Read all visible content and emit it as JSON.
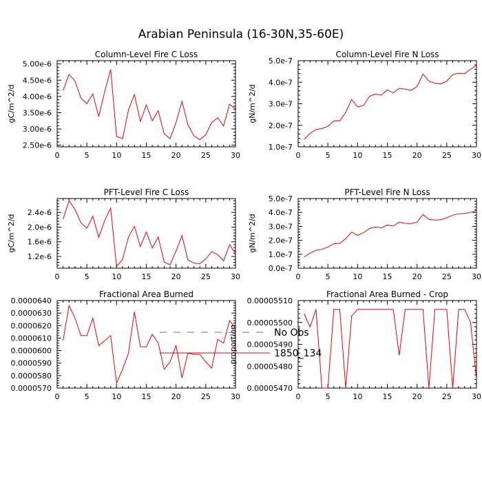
{
  "figure": {
    "title": "Arabian Peninsula (16-30N,35-60E)"
  },
  "legend": {
    "items": [
      {
        "label": "No Obs",
        "color": "#6666cc",
        "dashed": true
      },
      {
        "label": "1850_134",
        "color": "#ee0000",
        "dashed": false
      }
    ]
  },
  "chart_data": [
    {
      "type": "line",
      "title": "Column-Level Fire C Loss",
      "ylabel": "gC/m^2/d",
      "xlim": [
        0,
        30
      ],
      "ylim": [
        2.45e-06,
        5.1e-06
      ],
      "xticks": [
        0,
        5,
        10,
        15,
        20,
        25,
        30
      ],
      "xtick_labels": [
        "0",
        "5",
        "10",
        "15",
        "20",
        "25",
        "30"
      ],
      "yticks": [
        2.5e-06,
        3e-06,
        3.5e-06,
        4e-06,
        4.5e-06,
        5e-06
      ],
      "ytick_labels": [
        "2.50e-6",
        "3.00e-6",
        "3.50e-6",
        "4.00e-6",
        "4.50e-6",
        "5.00e-6"
      ],
      "series": [
        {
          "name": "1850_134",
          "x": [
            1,
            2,
            3,
            4,
            5,
            6,
            7,
            8,
            9,
            10,
            11,
            12,
            13,
            14,
            15,
            16,
            17,
            18,
            19,
            20,
            21,
            22,
            23,
            24,
            25,
            26,
            27,
            28,
            29,
            30
          ],
          "y": [
            4.18e-06,
            4.68e-06,
            4.47e-06,
            3.95e-06,
            3.78e-06,
            4.08e-06,
            3.38e-06,
            4.15e-06,
            4.83e-06,
            2.77e-06,
            2.7e-06,
            3.58e-06,
            4.06e-06,
            3.23e-06,
            3.74e-06,
            3.25e-06,
            3.56e-06,
            2.85e-06,
            2.7e-06,
            3.2e-06,
            3.85e-06,
            3.13e-06,
            2.79e-06,
            2.67e-06,
            2.82e-06,
            3.2e-06,
            3.34e-06,
            3.09e-06,
            3.76e-06,
            3.62e-06
          ]
        }
      ]
    },
    {
      "type": "line",
      "title": "Column-Level Fire N Loss",
      "ylabel": "gN/m^2/d",
      "xlim": [
        0,
        30
      ],
      "ylim": [
        1e-07,
        5e-07
      ],
      "xticks": [
        0,
        5,
        10,
        15,
        20,
        25,
        30
      ],
      "xtick_labels": [
        "0",
        "5",
        "10",
        "15",
        "20",
        "25",
        "30"
      ],
      "yticks": [
        1e-07,
        2e-07,
        3e-07,
        4e-07,
        5e-07
      ],
      "ytick_labels": [
        "1.0e-7",
        "2.0e-7",
        "3.0e-7",
        "4.0e-7",
        "5.0e-7"
      ],
      "series": [
        {
          "name": "1850_134",
          "x": [
            1,
            2,
            3,
            4,
            5,
            6,
            7,
            8,
            9,
            10,
            11,
            12,
            13,
            14,
            15,
            16,
            17,
            18,
            19,
            20,
            21,
            22,
            23,
            24,
            25,
            26,
            27,
            28,
            29,
            30
          ],
          "y": [
            1.35e-07,
            1.62e-07,
            1.8e-07,
            1.85e-07,
            1.95e-07,
            2.2e-07,
            2.2e-07,
            2.6e-07,
            3.2e-07,
            2.85e-07,
            2.92e-07,
            3.35e-07,
            3.45e-07,
            3.4e-07,
            3.65e-07,
            3.5e-07,
            3.72e-07,
            3.68e-07,
            3.62e-07,
            3.8e-07,
            4.38e-07,
            4.05e-07,
            3.95e-07,
            3.92e-07,
            4.05e-07,
            4.35e-07,
            4.42e-07,
            4.4e-07,
            4.6e-07,
            4.78e-07
          ]
        }
      ]
    },
    {
      "type": "line",
      "title": "PFT-Level Fire C Loss",
      "ylabel": "gC/m^2/d",
      "xlim": [
        0,
        30
      ],
      "ylim": [
        8.8e-07,
        2.78e-06
      ],
      "xticks": [
        0,
        5,
        10,
        15,
        20,
        25,
        30
      ],
      "xtick_labels": [
        "0",
        "5",
        "10",
        "15",
        "20",
        "25",
        "30"
      ],
      "yticks": [
        1.2e-06,
        1.6e-06,
        2e-06,
        2.4e-06
      ],
      "ytick_labels": [
        "1.2e-6",
        "1.6e-6",
        "2.0e-6",
        "2.4e-6"
      ],
      "series": [
        {
          "name": "1850_134",
          "x": [
            1,
            2,
            3,
            4,
            5,
            6,
            7,
            8,
            9,
            10,
            11,
            12,
            13,
            14,
            15,
            16,
            17,
            18,
            19,
            20,
            21,
            22,
            23,
            24,
            25,
            26,
            27,
            28,
            29,
            30
          ],
          "y": [
            2.22e-06,
            2.72e-06,
            2.48e-06,
            2.12e-06,
            1.97e-06,
            2.3e-06,
            1.72e-06,
            2.18e-06,
            2.52e-06,
            9.2e-07,
            1.12e-06,
            1.73e-06,
            2.02e-06,
            1.47e-06,
            1.87e-06,
            1.43e-06,
            1.73e-06,
            1.05e-06,
            9.7e-07,
            1.35e-06,
            1.77e-06,
            1.1e-06,
            1.02e-06,
            1e-06,
            1.13e-06,
            1.33e-06,
            1.25e-06,
            1.08e-06,
            1.52e-06,
            1.28e-06
          ]
        }
      ]
    },
    {
      "type": "line",
      "title": "PFT-Level Fire N Loss",
      "ylabel": "gN/m^2/d",
      "xlim": [
        0,
        30
      ],
      "ylim": [
        0.0,
        5e-07
      ],
      "xticks": [
        0,
        5,
        10,
        15,
        20,
        25,
        30
      ],
      "xtick_labels": [
        "0",
        "5",
        "10",
        "15",
        "20",
        "25",
        "30"
      ],
      "yticks": [
        0.0,
        1e-07,
        2e-07,
        3e-07,
        4e-07,
        5e-07
      ],
      "ytick_labels": [
        "0.0e-7",
        "1.0e-7",
        "2.0e-7",
        "3.0e-7",
        "4.0e-7",
        "5.0e-7"
      ],
      "series": [
        {
          "name": "1850_134",
          "x": [
            1,
            2,
            3,
            4,
            5,
            6,
            7,
            8,
            9,
            10,
            11,
            12,
            13,
            14,
            15,
            16,
            17,
            18,
            19,
            20,
            21,
            22,
            23,
            24,
            25,
            26,
            27,
            28,
            29,
            30
          ],
          "y": [
            8e-08,
            1.08e-07,
            1.28e-07,
            1.35e-07,
            1.52e-07,
            1.75e-07,
            1.78e-07,
            2.12e-07,
            2.6e-07,
            2.35e-07,
            2.55e-07,
            2.85e-07,
            2.95e-07,
            2.9e-07,
            3.1e-07,
            3.02e-07,
            3.3e-07,
            3.22e-07,
            3.2e-07,
            3.3e-07,
            3.85e-07,
            3.5e-07,
            3.45e-07,
            3.48e-07,
            3.62e-07,
            3.8e-07,
            3.9e-07,
            3.92e-07,
            4e-07,
            4.15e-07
          ]
        }
      ]
    },
    {
      "type": "line",
      "title": "Fractional Area Burned",
      "ylabel": "",
      "xlim": [
        0,
        30
      ],
      "ylim": [
        5.7e-05,
        6.4e-05
      ],
      "xticks": [
        0,
        5,
        10,
        15,
        20,
        25,
        30
      ],
      "xtick_labels": [
        "0",
        "5",
        "10",
        "15",
        "20",
        "25",
        "30"
      ],
      "yticks": [
        5.7e-05,
        5.8e-05,
        5.9e-05,
        6e-05,
        6.1e-05,
        6.2e-05,
        6.3e-05,
        6.4e-05
      ],
      "ytick_labels": [
        "0.0000570",
        "0.0000580",
        "0.0000590",
        "0.0000600",
        "0.0000610",
        "0.0000620",
        "0.0000630",
        "0.0000640"
      ],
      "series": [
        {
          "name": "1850_134",
          "x": [
            1,
            2,
            3,
            4,
            5,
            6,
            7,
            8,
            9,
            10,
            11,
            12,
            13,
            14,
            15,
            16,
            17,
            18,
            19,
            20,
            21,
            22,
            23,
            24,
            25,
            26,
            27,
            28,
            29,
            30
          ],
          "y": [
            6.08e-05,
            6.36e-05,
            6.26e-05,
            6.12e-05,
            6.12e-05,
            6.26e-05,
            6.04e-05,
            6.08e-05,
            6.12e-05,
            5.74e-05,
            5.85e-05,
            5.98e-05,
            6.31e-05,
            6.03e-05,
            6.03e-05,
            6.13e-05,
            6.06e-05,
            5.85e-05,
            5.91e-05,
            6.04e-05,
            5.78e-05,
            5.98e-05,
            5.97e-05,
            5.97e-05,
            5.91e-05,
            5.86e-05,
            6.09e-05,
            6.06e-05,
            6.24e-05,
            6.18e-05
          ]
        }
      ]
    },
    {
      "type": "line",
      "title": "Fractional Area Burned - Crop",
      "ylabel": "proportion",
      "xlim": [
        0,
        30
      ],
      "ylim": [
        5.47e-05,
        5.51e-05
      ],
      "xticks": [
        0,
        5,
        10,
        15,
        20,
        25,
        30
      ],
      "xtick_labels": [
        "0",
        "5",
        "10",
        "15",
        "20",
        "25",
        "30"
      ],
      "yticks": [
        5.47e-05,
        5.48e-05,
        5.49e-05,
        5.5e-05,
        5.51e-05
      ],
      "ytick_labels": [
        "0.00005470",
        "0.00005480",
        "0.00005490",
        "0.00005500",
        "0.00005510"
      ],
      "series": [
        {
          "name": "1850_134",
          "x": [
            1,
            2,
            3,
            4,
            5,
            6,
            7,
            8,
            9,
            10,
            11,
            12,
            13,
            14,
            15,
            16,
            17,
            18,
            19,
            20,
            21,
            22,
            23,
            24,
            25,
            26,
            27,
            28,
            29,
            30
          ],
          "y": [
            5.504e-05,
            5.498e-05,
            5.506e-05,
            5.47e-05,
            5.47e-05,
            5.506e-05,
            5.506e-05,
            5.47e-05,
            5.503e-05,
            5.506e-05,
            5.506e-05,
            5.506e-05,
            5.506e-05,
            5.506e-05,
            5.506e-05,
            5.506e-05,
            5.485e-05,
            5.506e-05,
            5.506e-05,
            5.506e-05,
            5.506e-05,
            5.47e-05,
            5.506e-05,
            5.506e-05,
            5.506e-05,
            5.47e-05,
            5.506e-05,
            5.506e-05,
            5.5e-05,
            5.474e-05
          ]
        }
      ]
    }
  ]
}
